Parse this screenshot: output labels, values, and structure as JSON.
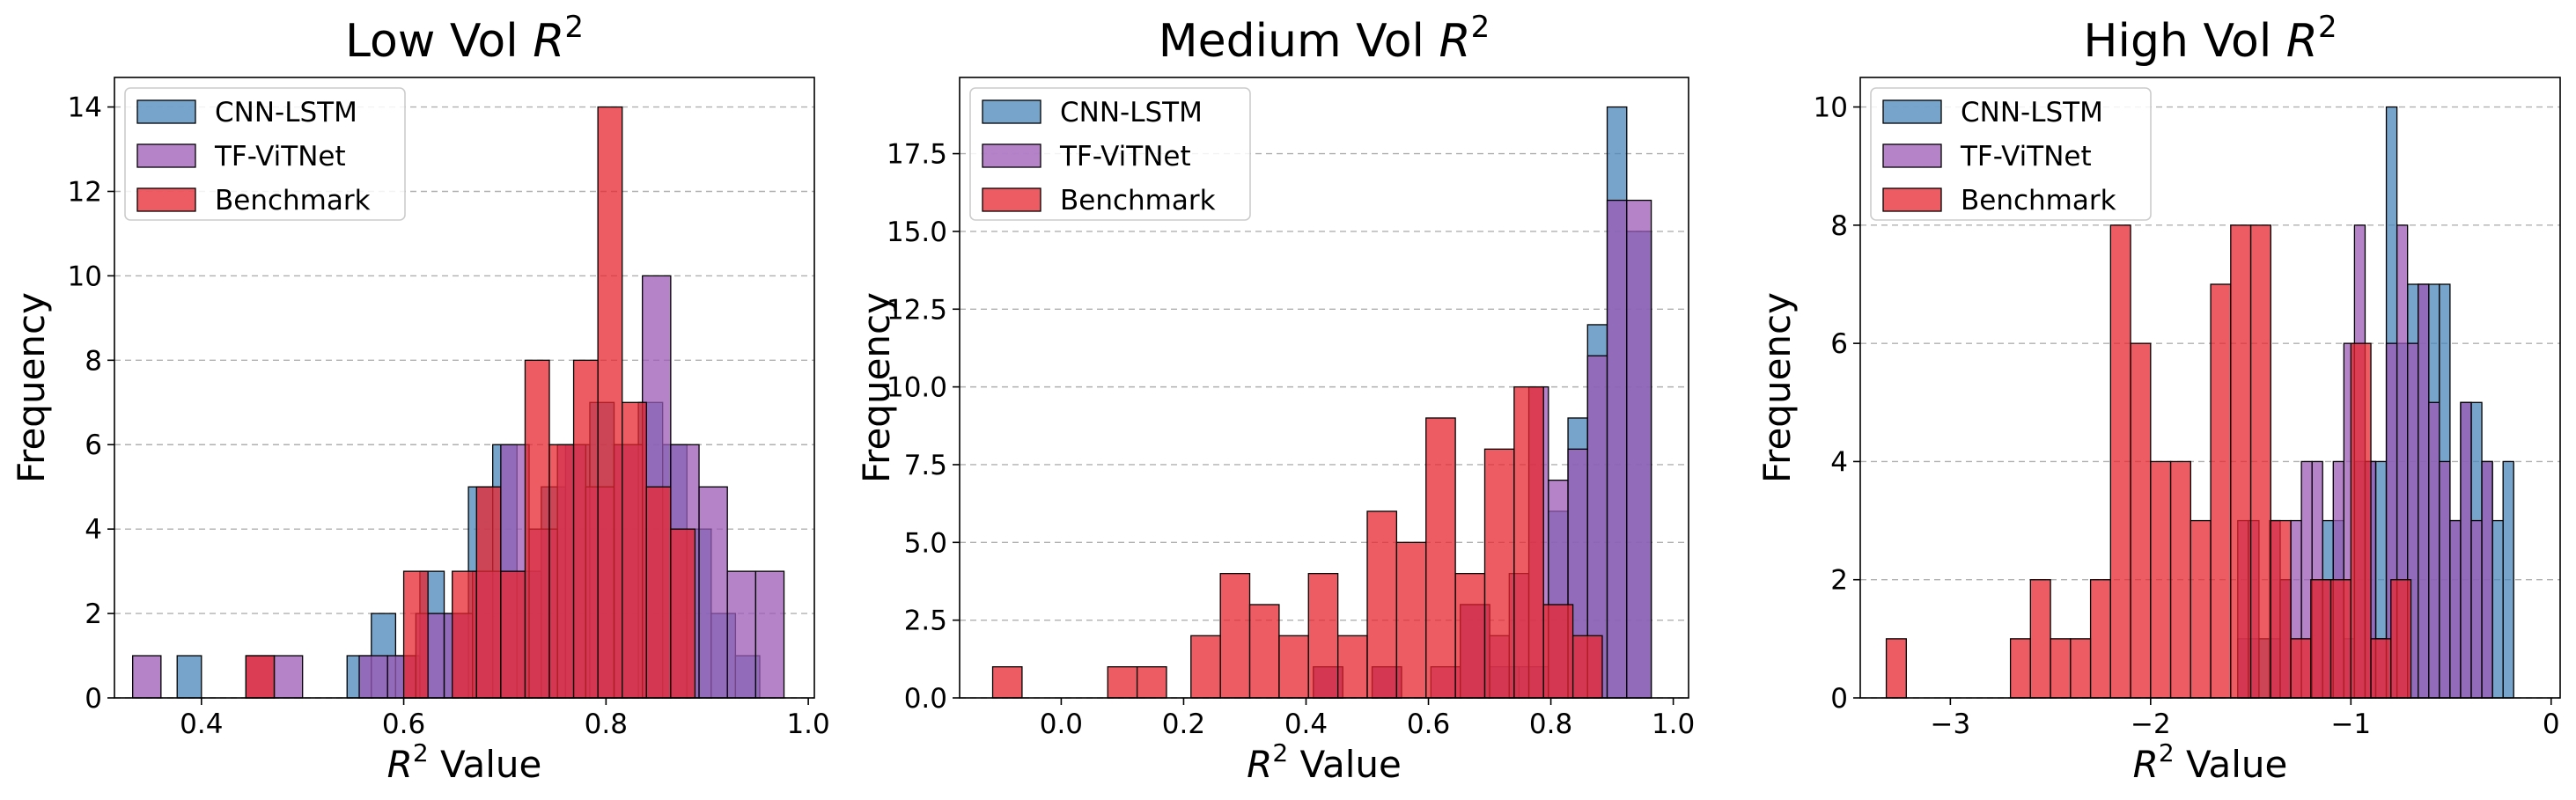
{
  "colors": {
    "cnn_lstm": "#4a86b9",
    "tf_vitnet": "#9b59b6",
    "benchmark": "#e8252f",
    "edge": "#000000",
    "grid": "#b0b0b0"
  },
  "chart_data": [
    {
      "type": "histogram",
      "title_text": "Low Vol ",
      "title_math": "R",
      "title_sup": "2",
      "xlabel_math": "R",
      "xlabel_sup": "2",
      "xlabel_text": " Value",
      "ylabel": "Frequency",
      "xlim": [
        0.314,
        1.006
      ],
      "ylim": [
        0,
        14.7
      ],
      "xticks": [
        0.4,
        0.6,
        0.8,
        1.0
      ],
      "xtick_labels": [
        "0.4",
        "0.6",
        "0.8",
        "1.0"
      ],
      "yticks": [
        0,
        2,
        4,
        6,
        8,
        10,
        12,
        14
      ],
      "ytick_labels": [
        "0",
        "2",
        "4",
        "6",
        "8",
        "10",
        "12",
        "14"
      ],
      "grid": "y-dashed",
      "legend_position": "top-left",
      "series": [
        {
          "name": "CNN-LSTM",
          "color_key": "cnn_lstm",
          "bins": [
            [
              0.376,
              0.4,
              1
            ],
            [
              0.544,
              0.568,
              1
            ],
            [
              0.568,
              0.592,
              2
            ],
            [
              0.592,
              0.616,
              1
            ],
            [
              0.616,
              0.64,
              3
            ],
            [
              0.64,
              0.664,
              2
            ],
            [
              0.664,
              0.688,
              5
            ],
            [
              0.688,
              0.712,
              6
            ],
            [
              0.712,
              0.736,
              3
            ],
            [
              0.736,
              0.76,
              5
            ],
            [
              0.76,
              0.784,
              6
            ],
            [
              0.784,
              0.808,
              7
            ],
            [
              0.808,
              0.832,
              6
            ],
            [
              0.832,
              0.856,
              7
            ],
            [
              0.856,
              0.88,
              6
            ],
            [
              0.88,
              0.904,
              4
            ],
            [
              0.904,
              0.928,
              2
            ],
            [
              0.928,
              0.952,
              1
            ]
          ]
        },
        {
          "name": "TF-ViTNet",
          "color_key": "tf_vitnet",
          "bins": [
            [
              0.332,
              0.36,
              1
            ],
            [
              0.444,
              0.472,
              1
            ],
            [
              0.472,
              0.5,
              1
            ],
            [
              0.556,
              0.584,
              1
            ],
            [
              0.584,
              0.612,
              1
            ],
            [
              0.612,
              0.64,
              2
            ],
            [
              0.64,
              0.668,
              2
            ],
            [
              0.668,
              0.696,
              3
            ],
            [
              0.696,
              0.724,
              6
            ],
            [
              0.724,
              0.752,
              4
            ],
            [
              0.752,
              0.78,
              6
            ],
            [
              0.78,
              0.808,
              5
            ],
            [
              0.808,
              0.836,
              6
            ],
            [
              0.836,
              0.864,
              10
            ],
            [
              0.864,
              0.892,
              6
            ],
            [
              0.892,
              0.92,
              5
            ],
            [
              0.92,
              0.948,
              3
            ],
            [
              0.948,
              0.976,
              3
            ]
          ]
        },
        {
          "name": "Benchmark",
          "color_key": "benchmark",
          "bins": [
            [
              0.444,
              0.472,
              1
            ],
            [
              0.6,
              0.624,
              3
            ],
            [
              0.648,
              0.672,
              3
            ],
            [
              0.672,
              0.696,
              5
            ],
            [
              0.696,
              0.72,
              3
            ],
            [
              0.72,
              0.744,
              8
            ],
            [
              0.744,
              0.768,
              6
            ],
            [
              0.768,
              0.792,
              8
            ],
            [
              0.792,
              0.816,
              14
            ],
            [
              0.816,
              0.84,
              7
            ],
            [
              0.84,
              0.864,
              5
            ],
            [
              0.864,
              0.888,
              4
            ]
          ]
        }
      ]
    },
    {
      "type": "histogram",
      "title_text": "Medium Vol ",
      "title_math": "R",
      "title_sup": "2",
      "xlabel_math": "R",
      "xlabel_sup": "2",
      "xlabel_text": " Value",
      "ylabel": "Frequency",
      "xlim": [
        -0.166,
        1.025
      ],
      "ylim": [
        0,
        19.95
      ],
      "xticks": [
        0.0,
        0.2,
        0.4,
        0.6,
        0.8,
        1.0
      ],
      "xtick_labels": [
        "0.0",
        "0.2",
        "0.4",
        "0.6",
        "0.8",
        "1.0"
      ],
      "yticks": [
        0,
        2.5,
        5,
        7.5,
        10,
        12.5,
        15,
        17.5
      ],
      "ytick_labels": [
        "0.0",
        "2.5",
        "5.0",
        "7.5",
        "10.0",
        "12.5",
        "15.0",
        "17.5"
      ],
      "grid": "y-dashed",
      "legend_position": "top-left",
      "series": [
        {
          "name": "CNN-LSTM",
          "color_key": "cnn_lstm",
          "bins": [
            [
              0.412,
              0.46,
              1
            ],
            [
              0.508,
              0.556,
              1
            ],
            [
              0.652,
              0.7,
              3
            ],
            [
              0.7,
              0.748,
              1
            ],
            [
              0.748,
              0.796,
              1
            ],
            [
              0.796,
              0.828,
              6
            ],
            [
              0.828,
              0.86,
              9
            ],
            [
              0.86,
              0.892,
              12
            ],
            [
              0.892,
              0.924,
              19
            ],
            [
              0.924,
              0.964,
              15
            ]
          ]
        },
        {
          "name": "TF-ViTNet",
          "color_key": "tf_vitnet",
          "bins": [
            [
              0.412,
              0.46,
              1
            ],
            [
              0.508,
              0.556,
              1
            ],
            [
              0.604,
              0.652,
              1
            ],
            [
              0.652,
              0.7,
              3
            ],
            [
              0.7,
              0.732,
              2
            ],
            [
              0.732,
              0.764,
              4
            ],
            [
              0.764,
              0.796,
              10
            ],
            [
              0.796,
              0.828,
              7
            ],
            [
              0.828,
              0.86,
              8
            ],
            [
              0.86,
              0.892,
              11
            ],
            [
              0.892,
              0.924,
              16
            ],
            [
              0.924,
              0.964,
              16
            ]
          ]
        },
        {
          "name": "Benchmark",
          "color_key": "benchmark",
          "bins": [
            [
              -0.112,
              -0.064,
              1
            ],
            [
              0.076,
              0.124,
              1
            ],
            [
              0.124,
              0.172,
              1
            ],
            [
              0.212,
              0.26,
              2
            ],
            [
              0.26,
              0.308,
              4
            ],
            [
              0.308,
              0.356,
              3
            ],
            [
              0.356,
              0.404,
              2
            ],
            [
              0.404,
              0.452,
              4
            ],
            [
              0.452,
              0.5,
              2
            ],
            [
              0.5,
              0.548,
              6
            ],
            [
              0.548,
              0.596,
              5
            ],
            [
              0.596,
              0.644,
              9
            ],
            [
              0.644,
              0.692,
              4
            ],
            [
              0.692,
              0.74,
              8
            ],
            [
              0.74,
              0.788,
              10
            ],
            [
              0.788,
              0.836,
              3
            ],
            [
              0.836,
              0.884,
              2
            ]
          ]
        }
      ]
    },
    {
      "type": "histogram",
      "title_text": "High Vol ",
      "title_math": "R",
      "title_sup": "2",
      "xlabel_math": "R",
      "xlabel_sup": "2",
      "xlabel_text": " Value",
      "ylabel": "Frequency",
      "xlim": [
        -3.45,
        0.045
      ],
      "ylim": [
        0,
        10.5
      ],
      "xticks": [
        -3,
        -2,
        -1,
        0
      ],
      "xtick_labels": [
        "−3",
        "−2",
        "−1",
        "0"
      ],
      "yticks": [
        0,
        2,
        4,
        6,
        8,
        10
      ],
      "ytick_labels": [
        "0",
        "2",
        "4",
        "6",
        "8",
        "10"
      ],
      "grid": "y-dashed",
      "legend_position": "top-left",
      "series": [
        {
          "name": "CNN-LSTM",
          "color_key": "cnn_lstm",
          "bins": [
            [
              -1.565,
              -1.512,
              1
            ],
            [
              -1.512,
              -1.459,
              1
            ],
            [
              -1.459,
              -1.406,
              1
            ],
            [
              -1.406,
              -1.353,
              1
            ],
            [
              -1.353,
              -1.3,
              2
            ],
            [
              -1.194,
              -1.141,
              2
            ],
            [
              -1.141,
              -1.088,
              3
            ],
            [
              -1.088,
              -1.035,
              3
            ],
            [
              -1.035,
              -0.982,
              1
            ],
            [
              -0.982,
              -0.929,
              4
            ],
            [
              -0.929,
              -0.876,
              4
            ],
            [
              -0.876,
              -0.823,
              4
            ],
            [
              -0.823,
              -0.77,
              10
            ],
            [
              -0.77,
              -0.717,
              6
            ],
            [
              -0.717,
              -0.664,
              7
            ],
            [
              -0.664,
              -0.611,
              7
            ],
            [
              -0.611,
              -0.558,
              7
            ],
            [
              -0.558,
              -0.505,
              7
            ],
            [
              -0.505,
              -0.452,
              3
            ],
            [
              -0.452,
              -0.399,
              5
            ],
            [
              -0.399,
              -0.346,
              5
            ],
            [
              -0.346,
              -0.293,
              4
            ],
            [
              -0.293,
              -0.24,
              3
            ],
            [
              -0.24,
              -0.187,
              4
            ]
          ]
        },
        {
          "name": "TF-ViTNet",
          "color_key": "tf_vitnet",
          "bins": [
            [
              -1.565,
              -1.512,
              3
            ],
            [
              -1.512,
              -1.459,
              3
            ],
            [
              -1.406,
              -1.353,
              3
            ],
            [
              -1.353,
              -1.3,
              2
            ],
            [
              -1.3,
              -1.247,
              3
            ],
            [
              -1.247,
              -1.194,
              4
            ],
            [
              -1.194,
              -1.141,
              4
            ],
            [
              -1.141,
              -1.088,
              2
            ],
            [
              -1.088,
              -1.035,
              4
            ],
            [
              -1.035,
              -0.982,
              6
            ],
            [
              -0.982,
              -0.929,
              8
            ],
            [
              -0.929,
              -0.876,
              4
            ],
            [
              -0.876,
              -0.823,
              1
            ],
            [
              -0.823,
              -0.77,
              6
            ],
            [
              -0.77,
              -0.717,
              8
            ],
            [
              -0.717,
              -0.664,
              6
            ],
            [
              -0.664,
              -0.611,
              7
            ],
            [
              -0.611,
              -0.558,
              5
            ],
            [
              -0.558,
              -0.505,
              4
            ],
            [
              -0.505,
              -0.452,
              3
            ],
            [
              -0.452,
              -0.399,
              5
            ],
            [
              -0.399,
              -0.346,
              3
            ],
            [
              -0.346,
              -0.293,
              4
            ]
          ]
        },
        {
          "name": "Benchmark",
          "color_key": "benchmark",
          "bins": [
            [
              -3.32,
              -3.22,
              1
            ],
            [
              -2.7,
              -2.6,
              1
            ],
            [
              -2.6,
              -2.5,
              2
            ],
            [
              -2.5,
              -2.4,
              1
            ],
            [
              -2.4,
              -2.3,
              1
            ],
            [
              -2.3,
              -2.2,
              2
            ],
            [
              -2.2,
              -2.1,
              8
            ],
            [
              -2.1,
              -2.0,
              6
            ],
            [
              -2.0,
              -1.9,
              4
            ],
            [
              -1.9,
              -1.8,
              4
            ],
            [
              -1.8,
              -1.7,
              3
            ],
            [
              -1.7,
              -1.6,
              7
            ],
            [
              -1.6,
              -1.5,
              8
            ],
            [
              -1.5,
              -1.4,
              8
            ],
            [
              -1.4,
              -1.3,
              3
            ],
            [
              -1.3,
              -1.2,
              1
            ],
            [
              -1.2,
              -1.1,
              2
            ],
            [
              -1.1,
              -1.0,
              2
            ],
            [
              -1.0,
              -0.9,
              6
            ],
            [
              -0.9,
              -0.8,
              1
            ],
            [
              -0.8,
              -0.7,
              2
            ]
          ]
        }
      ]
    }
  ]
}
